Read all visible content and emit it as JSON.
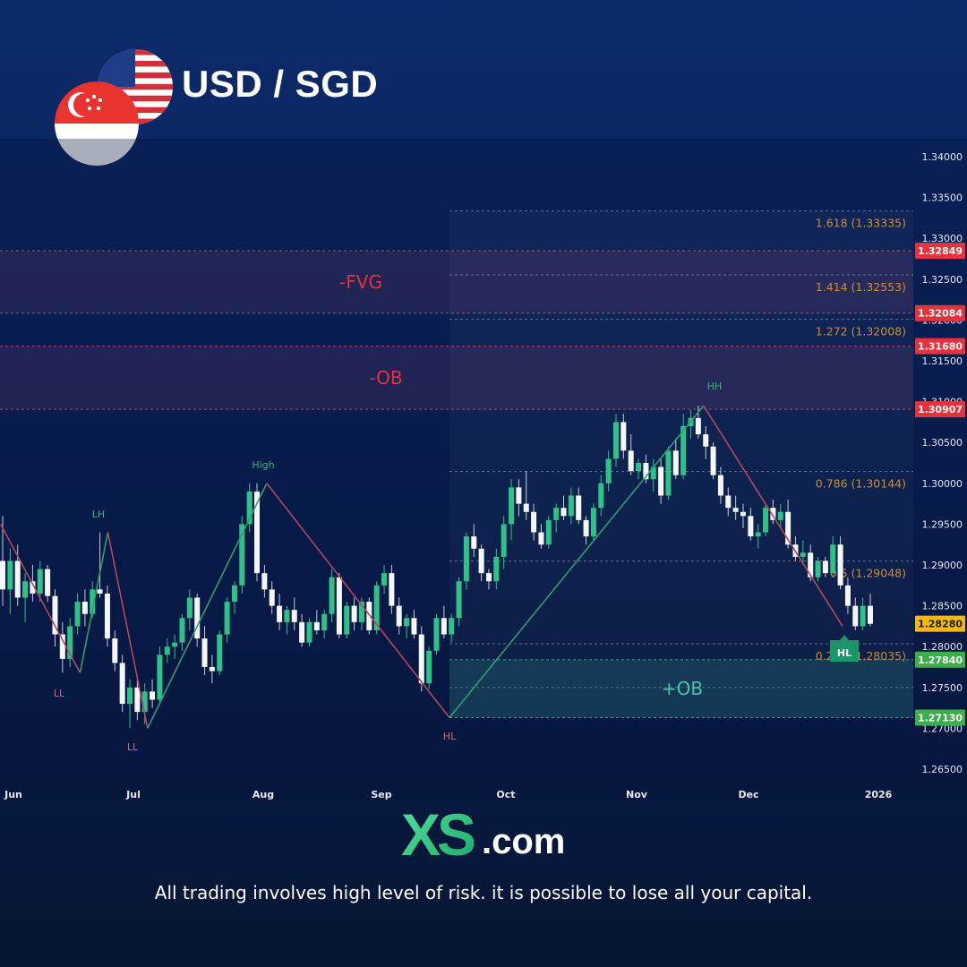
{
  "header": {
    "pair": "USD / SGD",
    "flags": [
      "us-flag",
      "singapore-flag"
    ]
  },
  "chart_data": {
    "type": "candlestick",
    "title": "USD / SGD",
    "y_axis": {
      "ylim": [
        1.2635,
        1.3425
      ],
      "ticks": [
        "1.34000",
        "1.33500",
        "1.33000",
        "1.32500",
        "1.32000",
        "1.31500",
        "1.31000",
        "1.30500",
        "1.30000",
        "1.29500",
        "1.29000",
        "1.28500",
        "1.28000",
        "1.27500",
        "1.27000",
        "1.26500"
      ],
      "position": "right"
    },
    "x_axis": {
      "ticks": [
        "Jun",
        "Jul",
        "Aug",
        "Sep",
        "Oct",
        "Nov",
        "Dec",
        "2026"
      ]
    },
    "price_labels": [
      {
        "value": "1.32849",
        "color": "#e5323c"
      },
      {
        "value": "1.32084",
        "color": "#e5323c"
      },
      {
        "value": "1.31680",
        "color": "#e5323c"
      },
      {
        "value": "1.30907",
        "color": "#e5323c"
      },
      {
        "value": "1.28280",
        "color": "#f5b915"
      },
      {
        "value": "1.27840",
        "color": "#3dae4b"
      },
      {
        "value": "1.27130",
        "color": "#3dae4b"
      }
    ],
    "fib_levels": [
      {
        "label": "1.618 (1.33335)",
        "price": 1.33335
      },
      {
        "label": "1.414 (1.32553)",
        "price": 1.32553
      },
      {
        "label": "1.272 (1.32008)",
        "price": 1.32008
      },
      {
        "label": "0.786 (1.30144)",
        "price": 1.30144
      },
      {
        "label": "0.5 (1.29048)",
        "price": 1.29048
      },
      {
        "label": "0.236 (1.28035)",
        "price": 1.28035
      }
    ],
    "zones": [
      {
        "label": "-FVG",
        "top": 1.32849,
        "bottom": 1.32084,
        "color": "#e5323c"
      },
      {
        "label": "-OB",
        "top": 1.3168,
        "bottom": 1.30907,
        "color": "#e5323c"
      },
      {
        "label": "+OB",
        "top": 1.2784,
        "bottom": 1.2713,
        "color": "#3fc4a6"
      }
    ],
    "swing_labels": [
      {
        "label": "LL",
        "color": "#e5626a"
      },
      {
        "label": "LH",
        "color": "#35b57a"
      },
      {
        "label": "LL",
        "color": "#e5626a"
      },
      {
        "label": "High",
        "color": "#35b57a"
      },
      {
        "label": "HL",
        "color": "#e5626a"
      },
      {
        "label": "HH",
        "color": "#35b57a"
      },
      {
        "label": "HL",
        "color": "#ffffff"
      }
    ],
    "swing_points": [
      {
        "date": "2025-05-25",
        "price": 1.295
      },
      {
        "date": "2025-06-14",
        "price": 1.2768
      },
      {
        "date": "2025-06-21",
        "price": 1.294
      },
      {
        "date": "2025-07-01",
        "price": 1.27
      },
      {
        "date": "2025-07-31",
        "price": 1.3
      },
      {
        "date": "2025-09-15",
        "price": 1.2713
      },
      {
        "date": "2025-11-18",
        "price": 1.3095
      },
      {
        "date": "2025-12-23",
        "price": 1.2825
      }
    ],
    "candles": [
      {
        "o": 1.2905,
        "h": 1.296,
        "l": 1.285,
        "c": 1.287
      },
      {
        "o": 1.287,
        "h": 1.292,
        "l": 1.284,
        "c": 1.2905
      },
      {
        "o": 1.2905,
        "h": 1.2925,
        "l": 1.285,
        "c": 1.286
      },
      {
        "o": 1.286,
        "h": 1.289,
        "l": 1.283,
        "c": 1.288
      },
      {
        "o": 1.288,
        "h": 1.29,
        "l": 1.2855,
        "c": 1.2865
      },
      {
        "o": 1.2865,
        "h": 1.2905,
        "l": 1.2855,
        "c": 1.2895
      },
      {
        "o": 1.2895,
        "h": 1.29,
        "l": 1.2855,
        "c": 1.2862
      },
      {
        "o": 1.2862,
        "h": 1.287,
        "l": 1.28,
        "c": 1.2815
      },
      {
        "o": 1.2815,
        "h": 1.283,
        "l": 1.2768,
        "c": 1.2785
      },
      {
        "o": 1.2785,
        "h": 1.2835,
        "l": 1.2775,
        "c": 1.2825
      },
      {
        "o": 1.2825,
        "h": 1.2865,
        "l": 1.2815,
        "c": 1.2855
      },
      {
        "o": 1.2855,
        "h": 1.287,
        "l": 1.2825,
        "c": 1.284
      },
      {
        "o": 1.284,
        "h": 1.288,
        "l": 1.2835,
        "c": 1.287
      },
      {
        "o": 1.287,
        "h": 1.294,
        "l": 1.286,
        "c": 1.2865
      },
      {
        "o": 1.2865,
        "h": 1.2875,
        "l": 1.28,
        "c": 1.281
      },
      {
        "o": 1.281,
        "h": 1.282,
        "l": 1.277,
        "c": 1.278
      },
      {
        "o": 1.278,
        "h": 1.279,
        "l": 1.272,
        "c": 1.273
      },
      {
        "o": 1.273,
        "h": 1.276,
        "l": 1.27,
        "c": 1.275
      },
      {
        "o": 1.275,
        "h": 1.276,
        "l": 1.271,
        "c": 1.272
      },
      {
        "o": 1.272,
        "h": 1.2755,
        "l": 1.2705,
        "c": 1.2745
      },
      {
        "o": 1.2745,
        "h": 1.276,
        "l": 1.2725,
        "c": 1.2735
      },
      {
        "o": 1.2735,
        "h": 1.28,
        "l": 1.273,
        "c": 1.279
      },
      {
        "o": 1.279,
        "h": 1.281,
        "l": 1.278,
        "c": 1.28
      },
      {
        "o": 1.28,
        "h": 1.2815,
        "l": 1.2785,
        "c": 1.2805
      },
      {
        "o": 1.2805,
        "h": 1.284,
        "l": 1.2795,
        "c": 1.2835
      },
      {
        "o": 1.2835,
        "h": 1.287,
        "l": 1.282,
        "c": 1.286
      },
      {
        "o": 1.286,
        "h": 1.2865,
        "l": 1.28,
        "c": 1.281
      },
      {
        "o": 1.281,
        "h": 1.2825,
        "l": 1.2765,
        "c": 1.2775
      },
      {
        "o": 1.2775,
        "h": 1.279,
        "l": 1.2755,
        "c": 1.277
      },
      {
        "o": 1.277,
        "h": 1.282,
        "l": 1.2765,
        "c": 1.2815
      },
      {
        "o": 1.2815,
        "h": 1.286,
        "l": 1.2805,
        "c": 1.2855
      },
      {
        "o": 1.2855,
        "h": 1.288,
        "l": 1.284,
        "c": 1.2875
      },
      {
        "o": 1.2875,
        "h": 1.296,
        "l": 1.2865,
        "c": 1.295
      },
      {
        "o": 1.295,
        "h": 1.3,
        "l": 1.294,
        "c": 1.299
      },
      {
        "o": 1.299,
        "h": 1.3,
        "l": 1.288,
        "c": 1.289
      },
      {
        "o": 1.289,
        "h": 1.29,
        "l": 1.286,
        "c": 1.287
      },
      {
        "o": 1.287,
        "h": 1.288,
        "l": 1.284,
        "c": 1.285
      },
      {
        "o": 1.285,
        "h": 1.2865,
        "l": 1.282,
        "c": 1.283
      },
      {
        "o": 1.283,
        "h": 1.285,
        "l": 1.2815,
        "c": 1.2845
      },
      {
        "o": 1.2845,
        "h": 1.286,
        "l": 1.282,
        "c": 1.283
      },
      {
        "o": 1.283,
        "h": 1.284,
        "l": 1.28,
        "c": 1.2805
      },
      {
        "o": 1.2805,
        "h": 1.2835,
        "l": 1.28,
        "c": 1.283
      },
      {
        "o": 1.283,
        "h": 1.2845,
        "l": 1.2815,
        "c": 1.282
      },
      {
        "o": 1.282,
        "h": 1.2845,
        "l": 1.281,
        "c": 1.284
      },
      {
        "o": 1.284,
        "h": 1.2895,
        "l": 1.283,
        "c": 1.2885
      },
      {
        "o": 1.2885,
        "h": 1.289,
        "l": 1.281,
        "c": 1.2815
      },
      {
        "o": 1.2815,
        "h": 1.2855,
        "l": 1.281,
        "c": 1.285
      },
      {
        "o": 1.285,
        "h": 1.286,
        "l": 1.282,
        "c": 1.283
      },
      {
        "o": 1.283,
        "h": 1.286,
        "l": 1.282,
        "c": 1.2855
      },
      {
        "o": 1.2855,
        "h": 1.286,
        "l": 1.2815,
        "c": 1.282
      },
      {
        "o": 1.282,
        "h": 1.288,
        "l": 1.2815,
        "c": 1.2875
      },
      {
        "o": 1.2875,
        "h": 1.29,
        "l": 1.2865,
        "c": 1.289
      },
      {
        "o": 1.289,
        "h": 1.29,
        "l": 1.284,
        "c": 1.285
      },
      {
        "o": 1.285,
        "h": 1.286,
        "l": 1.2815,
        "c": 1.2825
      },
      {
        "o": 1.2825,
        "h": 1.284,
        "l": 1.281,
        "c": 1.2835
      },
      {
        "o": 1.2835,
        "h": 1.2845,
        "l": 1.281,
        "c": 1.2815
      },
      {
        "o": 1.2815,
        "h": 1.2825,
        "l": 1.2745,
        "c": 1.2755
      },
      {
        "o": 1.2755,
        "h": 1.28,
        "l": 1.2748,
        "c": 1.2795
      },
      {
        "o": 1.2795,
        "h": 1.284,
        "l": 1.279,
        "c": 1.2835
      },
      {
        "o": 1.2835,
        "h": 1.285,
        "l": 1.281,
        "c": 1.2815
      },
      {
        "o": 1.2815,
        "h": 1.284,
        "l": 1.2805,
        "c": 1.2835
      },
      {
        "o": 1.2835,
        "h": 1.2885,
        "l": 1.2825,
        "c": 1.288
      },
      {
        "o": 1.288,
        "h": 1.294,
        "l": 1.287,
        "c": 1.2935
      },
      {
        "o": 1.2935,
        "h": 1.295,
        "l": 1.291,
        "c": 1.292
      },
      {
        "o": 1.292,
        "h": 1.2925,
        "l": 1.288,
        "c": 1.289
      },
      {
        "o": 1.289,
        "h": 1.2895,
        "l": 1.287,
        "c": 1.288
      },
      {
        "o": 1.288,
        "h": 1.292,
        "l": 1.287,
        "c": 1.291
      },
      {
        "o": 1.291,
        "h": 1.296,
        "l": 1.2895,
        "c": 1.295
      },
      {
        "o": 1.295,
        "h": 1.3005,
        "l": 1.293,
        "c": 1.2995
      },
      {
        "o": 1.2995,
        "h": 1.3005,
        "l": 1.296,
        "c": 1.2975
      },
      {
        "o": 1.2975,
        "h": 1.3015,
        "l": 1.2955,
        "c": 1.2965
      },
      {
        "o": 1.2965,
        "h": 1.2975,
        "l": 1.293,
        "c": 1.294
      },
      {
        "o": 1.294,
        "h": 1.295,
        "l": 1.292,
        "c": 1.2925
      },
      {
        "o": 1.2925,
        "h": 1.296,
        "l": 1.292,
        "c": 1.2955
      },
      {
        "o": 1.2955,
        "h": 1.2975,
        "l": 1.294,
        "c": 1.297
      },
      {
        "o": 1.297,
        "h": 1.2985,
        "l": 1.2955,
        "c": 1.296
      },
      {
        "o": 1.296,
        "h": 1.2995,
        "l": 1.295,
        "c": 1.2985
      },
      {
        "o": 1.2985,
        "h": 1.2995,
        "l": 1.295,
        "c": 1.2955
      },
      {
        "o": 1.2955,
        "h": 1.296,
        "l": 1.2925,
        "c": 1.2935
      },
      {
        "o": 1.2935,
        "h": 1.2975,
        "l": 1.293,
        "c": 1.297
      },
      {
        "o": 1.297,
        "h": 1.301,
        "l": 1.296,
        "c": 1.3
      },
      {
        "o": 1.3,
        "h": 1.304,
        "l": 1.299,
        "c": 1.303
      },
      {
        "o": 1.303,
        "h": 1.3085,
        "l": 1.302,
        "c": 1.3075
      },
      {
        "o": 1.3075,
        "h": 1.3085,
        "l": 1.303,
        "c": 1.304
      },
      {
        "o": 1.304,
        "h": 1.306,
        "l": 1.301,
        "c": 1.3015
      },
      {
        "o": 1.3015,
        "h": 1.303,
        "l": 1.3005,
        "c": 1.3025
      },
      {
        "o": 1.3025,
        "h": 1.3035,
        "l": 1.3,
        "c": 1.3005
      },
      {
        "o": 1.3005,
        "h": 1.303,
        "l": 1.299,
        "c": 1.302
      },
      {
        "o": 1.302,
        "h": 1.303,
        "l": 1.2975,
        "c": 1.2985
      },
      {
        "o": 1.2985,
        "h": 1.3045,
        "l": 1.298,
        "c": 1.304
      },
      {
        "o": 1.304,
        "h": 1.3055,
        "l": 1.3005,
        "c": 1.301
      },
      {
        "o": 1.301,
        "h": 1.3085,
        "l": 1.3005,
        "c": 1.307
      },
      {
        "o": 1.307,
        "h": 1.309,
        "l": 1.3055,
        "c": 1.308
      },
      {
        "o": 1.308,
        "h": 1.3095,
        "l": 1.3055,
        "c": 1.306
      },
      {
        "o": 1.306,
        "h": 1.307,
        "l": 1.303,
        "c": 1.3045
      },
      {
        "o": 1.3045,
        "h": 1.305,
        "l": 1.3005,
        "c": 1.301
      },
      {
        "o": 1.301,
        "h": 1.302,
        "l": 1.2975,
        "c": 1.2985
      },
      {
        "o": 1.2985,
        "h": 1.2995,
        "l": 1.296,
        "c": 1.297
      },
      {
        "o": 1.297,
        "h": 1.2985,
        "l": 1.2955,
        "c": 1.2965
      },
      {
        "o": 1.2965,
        "h": 1.2975,
        "l": 1.2945,
        "c": 1.296
      },
      {
        "o": 1.296,
        "h": 1.297,
        "l": 1.293,
        "c": 1.2935
      },
      {
        "o": 1.2935,
        "h": 1.295,
        "l": 1.292,
        "c": 1.294
      },
      {
        "o": 1.294,
        "h": 1.2975,
        "l": 1.2935,
        "c": 1.297
      },
      {
        "o": 1.297,
        "h": 1.298,
        "l": 1.295,
        "c": 1.2955
      },
      {
        "o": 1.2955,
        "h": 1.2975,
        "l": 1.2945,
        "c": 1.2965
      },
      {
        "o": 1.2965,
        "h": 1.298,
        "l": 1.292,
        "c": 1.2925
      },
      {
        "o": 1.2925,
        "h": 1.2935,
        "l": 1.2905,
        "c": 1.291
      },
      {
        "o": 1.291,
        "h": 1.293,
        "l": 1.29,
        "c": 1.2915
      },
      {
        "o": 1.2915,
        "h": 1.2925,
        "l": 1.288,
        "c": 1.2885
      },
      {
        "o": 1.2885,
        "h": 1.291,
        "l": 1.288,
        "c": 1.2905
      },
      {
        "o": 1.2905,
        "h": 1.291,
        "l": 1.2885,
        "c": 1.289
      },
      {
        "o": 1.289,
        "h": 1.2935,
        "l": 1.2885,
        "c": 1.2925
      },
      {
        "o": 1.2925,
        "h": 1.2935,
        "l": 1.287,
        "c": 1.2875
      },
      {
        "o": 1.2875,
        "h": 1.2885,
        "l": 1.284,
        "c": 1.285
      },
      {
        "o": 1.285,
        "h": 1.286,
        "l": 1.282,
        "c": 1.2825
      },
      {
        "o": 1.2825,
        "h": 1.286,
        "l": 1.282,
        "c": 1.285
      },
      {
        "o": 1.285,
        "h": 1.2865,
        "l": 1.2825,
        "c": 1.2828
      }
    ]
  },
  "logo": {
    "brand": "XS",
    "suffix": ".com"
  },
  "disclaimer": "All trading involves high level of risk. it is possible to lose all your capital."
}
